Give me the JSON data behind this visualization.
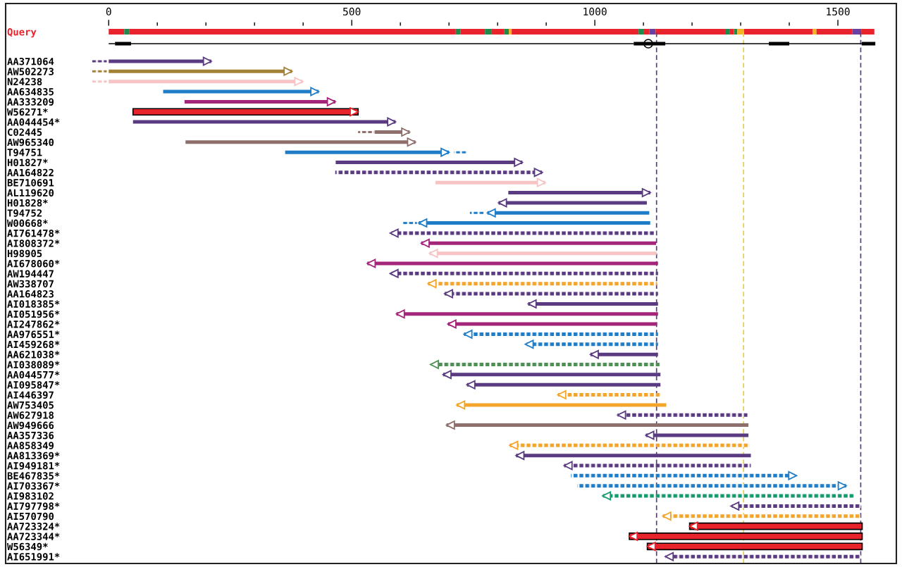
{
  "chart_data": [
    {
      "type": "bar",
      "orientation": "horizontal",
      "stacked": true,
      "categories": [
        "Query"
      ],
      "xlim": [
        -212,
        1620
      ],
      "xticks": [
        0,
        {
          "value": 100,
          "label": null
        },
        {
          "value": 200,
          "label": null
        },
        {
          "value": 300,
          "label": null
        },
        {
          "value": 400,
          "label": null
        },
        500,
        {
          "value": 600,
          "label": null
        },
        {
          "value": 700,
          "label": null
        },
        {
          "value": 800,
          "label": null
        },
        {
          "value": 900,
          "label": null
        },
        1000,
        {
          "value": 1100,
          "label": null
        },
        {
          "value": 1200,
          "label": null
        },
        {
          "value": 1300,
          "label": null
        },
        {
          "value": 1400,
          "label": null
        },
        1500
      ],
      "series": [
        {
          "color": "#e8232b",
          "values": [
            32
          ]
        },
        {
          "color": "#1f8a4c",
          "values": [
            10
          ]
        },
        {
          "color": "#e8232b",
          "values": [
            672
          ]
        },
        {
          "color": "#1f8a4c",
          "values": [
            10
          ]
        },
        {
          "color": "#e8232b",
          "values": [
            50
          ]
        },
        {
          "color": "#1f8a4c",
          "values": [
            13
          ]
        },
        {
          "color": "#e8232b",
          "values": [
            27
          ]
        },
        {
          "color": "#1f8a4c",
          "values": [
            9
          ]
        },
        {
          "color": "#f5b323",
          "values": [
            6
          ]
        },
        {
          "color": "#e8232b",
          "values": [
            261
          ]
        },
        {
          "color": "#1f8a4c",
          "values": [
            10
          ]
        },
        {
          "color": "#e8232b",
          "values": [
            12
          ]
        },
        {
          "color": "#6b3fa0",
          "values": [
            13
          ]
        },
        {
          "color": "#e8232b",
          "values": [
            143
          ]
        },
        {
          "color": "#1f8a4c",
          "values": [
            10
          ]
        },
        {
          "color": "#e8232b",
          "values": [
            8
          ]
        },
        {
          "color": "#1f8a4c",
          "values": [
            7
          ]
        },
        {
          "color": "#f5b323",
          "values": [
            14
          ]
        },
        {
          "color": "#e8232b",
          "values": [
            141
          ]
        },
        {
          "color": "#f5b323",
          "values": [
            8
          ]
        },
        {
          "color": "#e8232b",
          "values": [
            74
          ]
        },
        {
          "color": "#6b3fa0",
          "values": [
            18
          ]
        },
        {
          "color": "#e8232b",
          "values": [
            27
          ]
        }
      ],
      "ref_lines": [
        {
          "axis": "x",
          "value": 1127,
          "color": "#5a3a80",
          "line_style": "dashed"
        },
        {
          "axis": "x",
          "value": 1306,
          "color": "#e8cf3a",
          "line_style": "dashed"
        },
        {
          "axis": "x",
          "value": 1547,
          "color": "#5a3a80",
          "line_style": "dashed"
        }
      ]
    },
    {
      "type": "bar",
      "orientation": "horizontal",
      "stacked": true,
      "categories": [
        null
      ],
      "xlim": [
        -212,
        1620
      ],
      "tick_labels": false,
      "series": [
        {
          "color": "#000000",
          "line_style": "solid",
          "values": [
            13
          ]
        },
        {
          "color": "#000000",
          "values": [
            33
          ]
        },
        {
          "color": "#000000",
          "line_style": "solid",
          "values": [
            1034
          ]
        },
        {
          "color": "#000000",
          "values": [
            65
          ]
        },
        {
          "color": "#000000",
          "line_style": "solid",
          "values": [
            213
          ]
        },
        {
          "color": "#000000",
          "values": [
            42
          ]
        },
        {
          "color": "#000000",
          "line_style": "solid",
          "values": [
            149
          ]
        },
        {
          "color": "#000000",
          "values": [
            28
          ]
        },
        {
          "type": "scatter",
          "color": "#000000",
          "marker": "circle",
          "values": [
            1110
          ]
        }
      ]
    },
    {
      "type": "bar",
      "orientation": "horizontal",
      "categories": [
        "AA371064",
        "AW502273",
        "N24238",
        "AA634835",
        "AA333209",
        "W56271*",
        "AA044454*",
        "C02445",
        "AW965340",
        "T94751",
        "H01827*",
        "AA164822",
        "BE710691",
        "AL119620",
        "H01828*",
        "T94752",
        "W00668*",
        "AI761478*",
        "AI808372*",
        "H98905",
        "AI678060*",
        "AW194447",
        "AW338707",
        "AA164823",
        "AI018385*",
        "AI051956*",
        "AI247862*",
        "AA976551*",
        "AI459268*",
        "AA621038*",
        "AI038089*",
        "AA044577*",
        "AI095847*",
        "AI446397",
        "AW753405",
        "AW627918",
        "AW949666",
        "AA357336",
        "AA858349",
        "AA813369*",
        "AI949181*",
        "BE467835*",
        "AI703367*",
        "AI983102",
        "AI797798*",
        "AI570790",
        "AA723324*",
        "AA723344*",
        "W56349*",
        "AI651991*"
      ],
      "xlim": [
        -212,
        1620
      ],
      "tick_labels": "y",
      "series": [
        {
          "line_style": "solid",
          "marker": "triangle",
          "base": [
            0,
            0,
            0,
            112,
            156,
            null,
            50,
            547,
            158,
            363,
            467,
            null,
            672,
            822,
            1107,
            1112,
            1114,
            null,
            1126,
            1127,
            1130,
            null,
            null,
            null,
            1130,
            1130,
            1128,
            null,
            null,
            1130,
            null,
            1135,
            1135,
            null,
            1147,
            null,
            1316,
            1316,
            null,
            1321,
            null,
            null,
            null,
            null,
            null,
            null,
            null,
            null,
            null,
            null
          ],
          "values": [
            211,
            377,
            399,
            320,
            310,
            null,
            540,
            72,
            473,
            337,
            384,
            null,
            226,
            292,
            -305,
            -333,
            -476,
            null,
            -483,
            -467,
            -598,
            null,
            null,
            null,
            -267,
            -538,
            -430,
            null,
            null,
            -139,
            null,
            -447,
            -398,
            null,
            -431,
            null,
            -621,
            -211,
            null,
            -483,
            null,
            null,
            null,
            null,
            null,
            null,
            null,
            null,
            null,
            null
          ],
          "colors": [
            "#5a3a80",
            "#a38238",
            "#f6c4c4",
            "#1f7dc8",
            "#a3257a",
            null,
            "#5a3a80",
            "#8e6f6c",
            "#8e6f6c",
            "#1f7dc8",
            "#5a3a80",
            null,
            "#f6c4c4",
            "#5a3a80",
            "#5a3a80",
            "#1f7dc8",
            "#1f7dc8",
            null,
            "#a3257a",
            "#f6c4c4",
            "#a3257a",
            null,
            null,
            null,
            "#5a3a80",
            "#a3257a",
            "#a3257a",
            null,
            null,
            "#5a3a80",
            null,
            "#5a3a80",
            "#5a3a80",
            null,
            "#f2a52a",
            null,
            "#8e6f6c",
            "#5a3a80",
            null,
            "#5a3a80",
            null,
            null,
            null,
            null,
            null,
            null,
            null,
            null,
            null,
            null
          ]
        },
        {
          "line_style": "dashed",
          "marker": "triangle",
          "base": [
            null,
            null,
            null,
            null,
            null,
            null,
            null,
            null,
            null,
            null,
            null,
            466,
            null,
            null,
            null,
            null,
            null,
            1122,
            null,
            null,
            null,
            1130,
            1128,
            1130,
            null,
            null,
            null,
            1130,
            1130,
            null,
            1134,
            null,
            null,
            1135,
            null,
            1314,
            null,
            null,
            1318,
            null,
            1321,
            951,
            964,
            1535,
            1547,
            1546,
            null,
            null,
            null,
            1547
          ],
          "values": [
            null,
            null,
            null,
            null,
            null,
            null,
            null,
            null,
            null,
            null,
            null,
            426,
            null,
            null,
            null,
            null,
            null,
            -543,
            null,
            null,
            null,
            -551,
            -471,
            -439,
            null,
            null,
            null,
            -399,
            -273,
            null,
            -472,
            null,
            null,
            -211,
            null,
            -267,
            null,
            null,
            -493,
            null,
            -384,
            464,
            553,
            -519,
            -267,
            -406,
            null,
            null,
            null,
            -402
          ],
          "colors": [
            null,
            null,
            null,
            null,
            null,
            null,
            null,
            null,
            null,
            null,
            null,
            "#5a3a80",
            null,
            null,
            null,
            null,
            null,
            "#5a3a80",
            null,
            null,
            null,
            "#5a3a80",
            "#f2a52a",
            "#5a3a80",
            null,
            null,
            null,
            "#1f7dc8",
            "#1f7dc8",
            null,
            "#4f8f55",
            null,
            null,
            "#f2a52a",
            null,
            "#5a3a80",
            null,
            null,
            "#f2a52a",
            null,
            "#5a3a80",
            "#1f7dc8",
            "#1f7dc8",
            "#169a6e",
            "#5a3a80",
            "#f2a52a",
            null,
            null,
            null,
            "#5a3a80"
          ]
        },
        {
          "marker": "triangle",
          "color": "#e8232b",
          "base": [
            null,
            null,
            null,
            null,
            null,
            50,
            null,
            null,
            null,
            null,
            null,
            null,
            null,
            null,
            null,
            null,
            null,
            null,
            null,
            null,
            null,
            null,
            null,
            null,
            null,
            null,
            null,
            null,
            null,
            null,
            null,
            null,
            null,
            null,
            null,
            null,
            null,
            null,
            null,
            null,
            null,
            null,
            null,
            null,
            null,
            null,
            1550,
            1550,
            1550,
            null
          ],
          "values": [
            null,
            null,
            null,
            null,
            null,
            463,
            null,
            null,
            null,
            null,
            null,
            null,
            null,
            null,
            null,
            null,
            null,
            null,
            null,
            null,
            null,
            null,
            null,
            null,
            null,
            null,
            null,
            null,
            null,
            null,
            null,
            null,
            null,
            null,
            null,
            null,
            null,
            null,
            null,
            null,
            null,
            null,
            null,
            null,
            null,
            null,
            -355,
            -479,
            -442,
            null
          ]
        },
        {
          "line_style": "dotted",
          "base": [
            -34,
            -34,
            -34,
            null,
            null,
            null,
            null,
            513,
            null,
            710,
            null,
            null,
            null,
            null,
            null,
            743,
            603,
            null,
            null,
            null,
            null,
            null,
            null,
            null,
            null,
            null,
            null,
            null,
            null,
            null,
            null,
            null,
            null,
            null,
            null,
            null,
            null,
            null,
            null,
            null,
            null,
            null,
            null,
            null,
            null,
            null,
            null,
            null,
            null,
            null
          ],
          "values": [
            30,
            30,
            30,
            null,
            null,
            null,
            null,
            33,
            null,
            26,
            null,
            null,
            null,
            null,
            null,
            29,
            31,
            null,
            null,
            null,
            null,
            null,
            null,
            null,
            null,
            null,
            null,
            null,
            null,
            null,
            null,
            null,
            null,
            null,
            null,
            null,
            null,
            null,
            null,
            null,
            null,
            null,
            null,
            null,
            null,
            null,
            null,
            null,
            null,
            null
          ],
          "colors": [
            "#5a3a80",
            "#a38238",
            "#f6c4c4",
            null,
            null,
            null,
            null,
            "#8e6f6c",
            null,
            "#1f7dc8",
            null,
            null,
            null,
            null,
            null,
            "#1f7dc8",
            "#1f7dc8",
            null,
            null,
            null,
            null,
            null,
            null,
            null,
            null,
            null,
            null,
            null,
            null,
            null,
            null,
            null,
            null,
            null,
            null,
            null,
            null,
            null,
            null,
            null,
            null,
            null,
            null,
            null,
            null,
            null,
            null,
            null,
            null,
            null
          ]
        }
      ]
    }
  ]
}
